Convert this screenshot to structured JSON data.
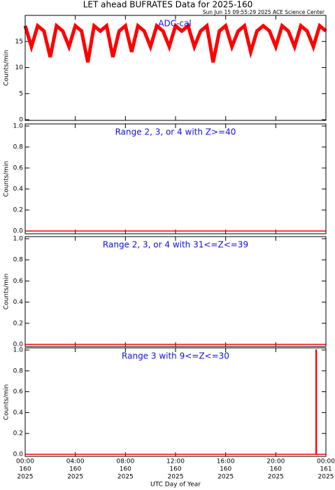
{
  "title": "LET ahead BUFRATES Data for 2025-160",
  "timestamp": "Sun Jun 15 09:55:29 2025 ACE Science Center",
  "xlabel": "UTC Day of Year",
  "chart_data": [
    {
      "type": "line",
      "annotation": "ADC-cal",
      "ylabel": "Counts/min",
      "color": "#ff0000",
      "xlim": [
        0,
        24
      ],
      "ylim": [
        0,
        20
      ],
      "yticks": [
        0,
        5,
        10,
        15
      ],
      "x": [
        0,
        0.5,
        1,
        1.5,
        2,
        2.5,
        3,
        3.5,
        4,
        4.5,
        5,
        5.5,
        6,
        6.5,
        7,
        7.5,
        8,
        8.5,
        9,
        9.5,
        10,
        10.5,
        11,
        11.5,
        12,
        12.5,
        13,
        13.5,
        14,
        14.5,
        15,
        15.5,
        16,
        16.5,
        17,
        17.5,
        18,
        18.5,
        19,
        19.5,
        20,
        20.5,
        21,
        21.5,
        22,
        22.5,
        23,
        23.5,
        24
      ],
      "values": [
        18,
        14,
        18,
        17,
        12,
        18,
        17,
        14,
        18,
        17,
        11,
        18,
        17,
        18,
        12,
        17,
        18,
        13,
        18,
        17,
        14,
        18,
        17,
        14,
        18,
        17,
        18,
        14,
        17,
        18,
        11,
        17,
        18,
        14,
        17,
        18,
        13,
        17,
        18,
        17,
        14,
        18,
        17,
        14,
        18,
        17,
        14,
        18,
        17
      ]
    },
    {
      "type": "line",
      "annotation": "Range 2, 3, or 4 with Z>=40",
      "ylabel": "Counts/min",
      "color": "#ff0000",
      "xlim": [
        0,
        24
      ],
      "ylim": [
        0,
        1
      ],
      "yticks": [
        {
          "value": 0,
          "label": "0.0"
        },
        0.2,
        0.4,
        0.6,
        0.8,
        {
          "value": 1,
          "label": "1.0"
        }
      ],
      "x": [
        0,
        24
      ],
      "values": [
        0,
        0
      ]
    },
    {
      "type": "line",
      "annotation": "Range 2, 3, or 4 with 31<=Z<=39",
      "ylabel": "Counts/min",
      "color": "#ff0000",
      "xlim": [
        0,
        24
      ],
      "ylim": [
        0,
        1
      ],
      "yticks": [
        {
          "value": 0,
          "label": "0.0"
        },
        0.2,
        0.4,
        0.6,
        0.8,
        {
          "value": 1,
          "label": "1.0"
        }
      ],
      "x": [
        0,
        24
      ],
      "values": [
        0,
        0
      ]
    },
    {
      "type": "line",
      "annotation": "Range 3 with 9<=Z<=30",
      "ylabel": "Counts/min",
      "color": "#ff0000",
      "xlim": [
        0,
        24
      ],
      "ylim": [
        0,
        1
      ],
      "yticks": [
        {
          "value": 0,
          "label": "0.0"
        },
        0.2,
        0.4,
        0.6,
        0.8,
        {
          "value": 1,
          "label": "1.0"
        }
      ],
      "xticks": [
        {
          "value": 0,
          "label": [
            "00:00",
            "160",
            "2025"
          ]
        },
        {
          "value": 4,
          "label": [
            "04:00",
            "160",
            "2025"
          ]
        },
        {
          "value": 8,
          "label": [
            "08:00",
            "160",
            "2025"
          ]
        },
        {
          "value": 12,
          "label": [
            "12:00",
            "160",
            "2025"
          ]
        },
        {
          "value": 16,
          "label": [
            "16:00",
            "160",
            "2025"
          ]
        },
        {
          "value": 20,
          "label": [
            "20:00",
            "160",
            "2025"
          ]
        },
        {
          "value": 24,
          "label": [
            "00:00",
            "161",
            "2025"
          ]
        }
      ],
      "x": [
        0,
        23.2,
        23.2,
        23.25,
        23.25,
        24
      ],
      "values": [
        0,
        0,
        1,
        1,
        0,
        0
      ]
    }
  ]
}
